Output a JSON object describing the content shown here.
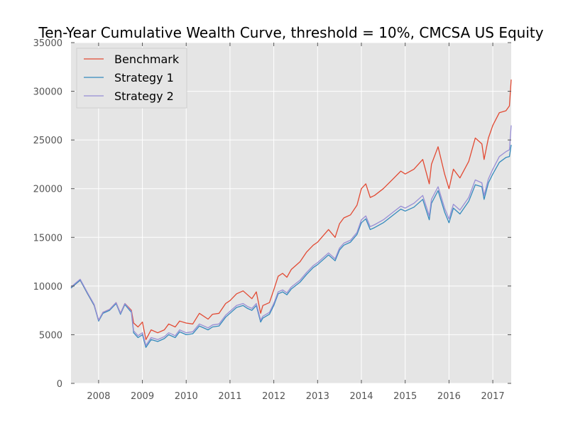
{
  "chart_data": {
    "type": "line",
    "title": "Ten-Year Cumulative Wealth Curve, threshold = 10%, CMCSA US Equity",
    "xlabel": "",
    "ylabel": "",
    "xlim": [
      2007.37,
      2017.42
    ],
    "ylim": [
      0,
      35000
    ],
    "x_ticks": [
      2008,
      2009,
      2010,
      2011,
      2012,
      2013,
      2014,
      2015,
      2016,
      2017
    ],
    "x_tick_labels": [
      "2008",
      "2009",
      "2010",
      "2011",
      "2012",
      "2013",
      "2014",
      "2015",
      "2016",
      "2017"
    ],
    "y_ticks": [
      0,
      5000,
      10000,
      15000,
      20000,
      25000,
      30000,
      35000
    ],
    "y_tick_labels": [
      "0",
      "5000",
      "10000",
      "15000",
      "20000",
      "25000",
      "30000",
      "35000"
    ],
    "grid": true,
    "legend_position": "top-left",
    "background_color": "#e5e5e5",
    "series": [
      {
        "name": "Benchmark",
        "color": "#e24a33",
        "x": [
          2007.37,
          2007.5,
          2007.58,
          2007.75,
          2007.9,
          2008.0,
          2008.1,
          2008.25,
          2008.4,
          2008.5,
          2008.6,
          2008.75,
          2008.8,
          2008.9,
          2009.0,
          2009.08,
          2009.2,
          2009.35,
          2009.5,
          2009.6,
          2009.75,
          2009.85,
          2010.0,
          2010.15,
          2010.3,
          2010.5,
          2010.6,
          2010.75,
          2010.9,
          2011.0,
          2011.15,
          2011.3,
          2011.4,
          2011.5,
          2011.6,
          2011.7,
          2011.75,
          2011.9,
          2012.0,
          2012.1,
          2012.2,
          2012.3,
          2012.4,
          2012.6,
          2012.75,
          2012.9,
          2013.0,
          2013.25,
          2013.4,
          2013.5,
          2013.6,
          2013.75,
          2013.9,
          2014.0,
          2014.1,
          2014.2,
          2014.3,
          2014.5,
          2014.7,
          2014.9,
          2015.0,
          2015.2,
          2015.4,
          2015.55,
          2015.6,
          2015.75,
          2015.9,
          2016.0,
          2016.1,
          2016.25,
          2016.45,
          2016.6,
          2016.75,
          2016.8,
          2016.9,
          2017.0,
          2017.15,
          2017.3,
          2017.38,
          2017.42
        ],
        "y": [
          9800,
          10300,
          10600,
          9200,
          8000,
          6500,
          7300,
          7600,
          8300,
          7200,
          8200,
          7500,
          6200,
          5800,
          6300,
          4500,
          5500,
          5200,
          5500,
          6100,
          5800,
          6400,
          6200,
          6100,
          7200,
          6600,
          7100,
          7200,
          8200,
          8500,
          9200,
          9500,
          9100,
          8700,
          9400,
          7200,
          8000,
          8300,
          9600,
          11000,
          11300,
          10900,
          11700,
          12500,
          13500,
          14200,
          14500,
          15800,
          15000,
          16400,
          17000,
          17300,
          18300,
          20000,
          20500,
          19100,
          19300,
          20000,
          20900,
          21800,
          21500,
          22000,
          23000,
          20500,
          22500,
          24300,
          21500,
          20000,
          22000,
          21100,
          22800,
          25200,
          24600,
          23000,
          25200,
          26500,
          27800,
          28000,
          28500,
          31200
        ]
      },
      {
        "name": "Strategy 1",
        "color": "#348abd",
        "x": [
          2007.37,
          2007.5,
          2007.58,
          2007.75,
          2007.9,
          2008.0,
          2008.1,
          2008.25,
          2008.4,
          2008.5,
          2008.6,
          2008.75,
          2008.8,
          2008.9,
          2009.0,
          2009.08,
          2009.2,
          2009.35,
          2009.5,
          2009.6,
          2009.75,
          2009.85,
          2010.0,
          2010.15,
          2010.3,
          2010.5,
          2010.6,
          2010.75,
          2010.9,
          2011.0,
          2011.15,
          2011.3,
          2011.4,
          2011.5,
          2011.6,
          2011.7,
          2011.75,
          2011.9,
          2012.0,
          2012.1,
          2012.2,
          2012.3,
          2012.4,
          2012.6,
          2012.75,
          2012.9,
          2013.0,
          2013.25,
          2013.4,
          2013.5,
          2013.6,
          2013.75,
          2013.9,
          2014.0,
          2014.1,
          2014.2,
          2014.3,
          2014.5,
          2014.7,
          2014.9,
          2015.0,
          2015.2,
          2015.4,
          2015.55,
          2015.6,
          2015.75,
          2015.9,
          2016.0,
          2016.1,
          2016.25,
          2016.45,
          2016.6,
          2016.75,
          2016.8,
          2016.9,
          2017.0,
          2017.15,
          2017.3,
          2017.38,
          2017.42
        ],
        "y": [
          9800,
          10300,
          10600,
          9200,
          8000,
          6400,
          7200,
          7500,
          8200,
          7100,
          8100,
          7300,
          5200,
          4700,
          5000,
          3700,
          4500,
          4300,
          4600,
          5000,
          4700,
          5300,
          5000,
          5100,
          5900,
          5500,
          5800,
          5900,
          6800,
          7200,
          7800,
          8000,
          7700,
          7500,
          8000,
          6300,
          6700,
          7100,
          8000,
          9200,
          9400,
          9100,
          9700,
          10400,
          11200,
          11900,
          12200,
          13200,
          12600,
          13700,
          14200,
          14500,
          15300,
          16500,
          16900,
          15800,
          16000,
          16500,
          17200,
          17900,
          17700,
          18100,
          18900,
          16800,
          18500,
          19800,
          17600,
          16500,
          18000,
          17400,
          18700,
          20400,
          20200,
          18900,
          20600,
          21500,
          22700,
          23200,
          23300,
          24500
        ]
      },
      {
        "name": "Strategy 2",
        "color": "#988ed5",
        "x": [
          2007.37,
          2007.5,
          2007.58,
          2007.75,
          2007.9,
          2008.0,
          2008.1,
          2008.25,
          2008.4,
          2008.5,
          2008.6,
          2008.75,
          2008.8,
          2008.9,
          2009.0,
          2009.08,
          2009.2,
          2009.35,
          2009.5,
          2009.6,
          2009.75,
          2009.85,
          2010.0,
          2010.15,
          2010.3,
          2010.5,
          2010.6,
          2010.75,
          2010.9,
          2011.0,
          2011.15,
          2011.3,
          2011.4,
          2011.5,
          2011.6,
          2011.7,
          2011.75,
          2011.9,
          2012.0,
          2012.1,
          2012.2,
          2012.3,
          2012.4,
          2012.6,
          2012.75,
          2012.9,
          2013.0,
          2013.25,
          2013.4,
          2013.5,
          2013.6,
          2013.75,
          2013.9,
          2014.0,
          2014.1,
          2014.2,
          2014.3,
          2014.5,
          2014.7,
          2014.9,
          2015.0,
          2015.2,
          2015.4,
          2015.55,
          2015.6,
          2015.75,
          2015.9,
          2016.0,
          2016.1,
          2016.25,
          2016.45,
          2016.6,
          2016.75,
          2016.8,
          2016.9,
          2017.0,
          2017.15,
          2017.3,
          2017.38,
          2017.42
        ],
        "y": [
          9900,
          10400,
          10700,
          9300,
          8100,
          6500,
          7300,
          7600,
          8300,
          7200,
          8200,
          7400,
          5400,
          4900,
          5200,
          3900,
          4700,
          4500,
          4800,
          5200,
          4900,
          5500,
          5200,
          5300,
          6100,
          5700,
          6000,
          6100,
          7000,
          7400,
          8000,
          8200,
          7900,
          7700,
          8200,
          6500,
          6900,
          7300,
          8200,
          9400,
          9600,
          9300,
          9900,
          10600,
          11400,
          12100,
          12400,
          13400,
          12800,
          13900,
          14400,
          14700,
          15500,
          16800,
          17200,
          16100,
          16300,
          16800,
          17500,
          18200,
          18000,
          18500,
          19300,
          17200,
          18900,
          20200,
          18000,
          16900,
          18400,
          17800,
          19100,
          20900,
          20600,
          19300,
          21000,
          22000,
          23300,
          23800,
          24000,
          26500
        ]
      }
    ]
  }
}
